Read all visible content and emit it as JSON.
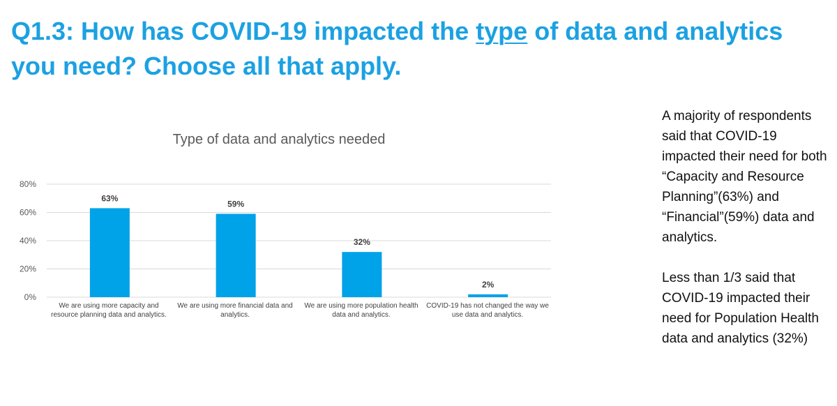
{
  "headline": {
    "prefix": "Q1.3: How has COVID-19 impacted the ",
    "emphasis": "type",
    "suffix": " of data and analytics you need? Choose all that apply."
  },
  "colors": {
    "accent": "#1ba1e2",
    "bar": "#00a2e8",
    "grid": "#d9d9d9",
    "axis_text": "#595959"
  },
  "chart_data": {
    "type": "bar",
    "title": "Type of data and analytics needed",
    "categories": [
      "We are using more capacity and resource planning data and analytics.",
      "We are using more financial data and analytics.",
      "We are using more population health data and analytics.",
      "COVID-19 has not changed the way we use data and analytics."
    ],
    "values": [
      63,
      59,
      32,
      2
    ],
    "data_labels": [
      "63%",
      "59%",
      "32%",
      "2%"
    ],
    "yticks": [
      0,
      20,
      40,
      60,
      80
    ],
    "ytick_labels": [
      "0%",
      "20%",
      "40%",
      "60%",
      "80%"
    ],
    "ylim": [
      0,
      80
    ],
    "xlabel": "",
    "ylabel": "",
    "grid": true,
    "legend": "none"
  },
  "notes": {
    "paragraph1": "A majority of respondents said that COVID-19 impacted their need for both “Capacity and Resource Planning”(63%) and “Financial”(59%) data and analytics.",
    "paragraph2": "Less than 1/3 said that COVID-19 impacted their need for Population Health data and analytics (32%)"
  }
}
